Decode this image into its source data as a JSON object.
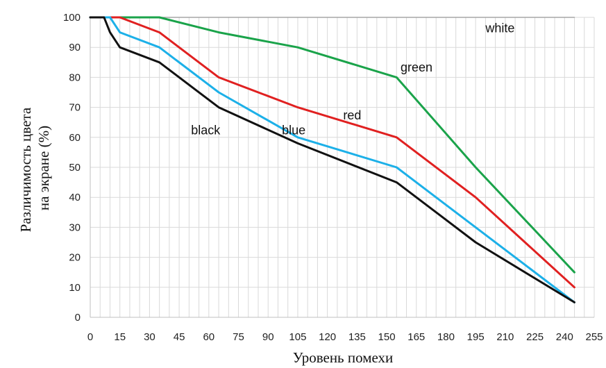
{
  "chart_data": {
    "type": "line",
    "title": "",
    "xlabel": "Уровень помехи",
    "ylabel_lines": [
      "Различимость цвета",
      "на экране (%)"
    ],
    "xlim": [
      0,
      255
    ],
    "ylim": [
      0,
      100
    ],
    "xticks": [
      0,
      15,
      30,
      45,
      60,
      75,
      90,
      105,
      120,
      135,
      150,
      165,
      180,
      195,
      210,
      225,
      240,
      255
    ],
    "yticks": [
      0,
      10,
      20,
      30,
      40,
      50,
      60,
      70,
      80,
      90,
      100
    ],
    "grid": true,
    "series": [
      {
        "name": "white",
        "color": "#a6a6a6",
        "points": [
          [
            0,
            100
          ],
          [
            245,
            100
          ]
        ]
      },
      {
        "name": "green",
        "color": "#1aa34a",
        "points": [
          [
            0,
            100
          ],
          [
            35,
            100
          ],
          [
            65,
            95
          ],
          [
            105,
            90
          ],
          [
            155,
            80
          ],
          [
            195,
            50
          ],
          [
            245,
            15
          ]
        ]
      },
      {
        "name": "red",
        "color": "#e02020",
        "points": [
          [
            0,
            100
          ],
          [
            15,
            100
          ],
          [
            35,
            95
          ],
          [
            65,
            80
          ],
          [
            105,
            70
          ],
          [
            155,
            60
          ],
          [
            195,
            40
          ],
          [
            245,
            10
          ]
        ]
      },
      {
        "name": "blue",
        "color": "#1cb0e8",
        "points": [
          [
            0,
            100
          ],
          [
            10,
            100
          ],
          [
            15,
            95
          ],
          [
            35,
            90
          ],
          [
            65,
            75
          ],
          [
            105,
            60
          ],
          [
            155,
            50
          ],
          [
            195,
            30
          ],
          [
            245,
            5
          ]
        ]
      },
      {
        "name": "black",
        "color": "#111111",
        "points": [
          [
            0,
            100
          ],
          [
            7,
            100
          ],
          [
            10,
            95
          ],
          [
            15,
            90
          ],
          [
            35,
            85
          ],
          [
            65,
            70
          ],
          [
            105,
            58
          ],
          [
            155,
            45
          ],
          [
            195,
            25
          ],
          [
            245,
            5
          ]
        ]
      }
    ],
    "annotations": [
      {
        "text": "white",
        "x": 200,
        "y": 95
      },
      {
        "text": "green",
        "x": 157,
        "y": 82
      },
      {
        "text": "red",
        "x": 128,
        "y": 66
      },
      {
        "text": "blue",
        "x": 97,
        "y": 61
      },
      {
        "text": "black",
        "x": 51,
        "y": 61
      }
    ]
  }
}
